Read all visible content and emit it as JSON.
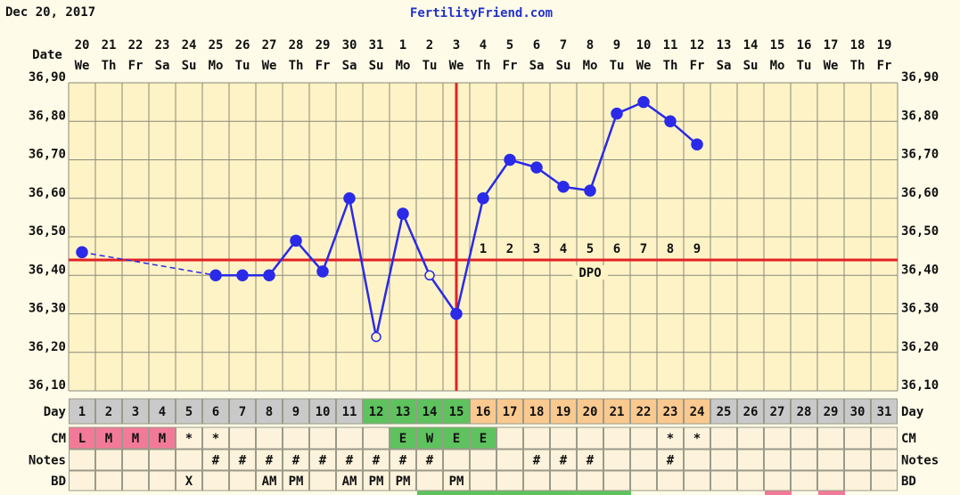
{
  "chart_data": {
    "type": "line",
    "date": "Dec 20, 2017",
    "title": "FertilityFriend.com",
    "x_header": "Date",
    "categories": [
      "20",
      "21",
      "22",
      "23",
      "24",
      "25",
      "26",
      "27",
      "28",
      "29",
      "30",
      "31",
      "1",
      "2",
      "3",
      "4",
      "5",
      "6",
      "7",
      "8",
      "9",
      "10",
      "11",
      "12",
      "13",
      "14",
      "15",
      "16",
      "17",
      "18",
      "19"
    ],
    "weekdays": [
      "We",
      "Th",
      "Fr",
      "Sa",
      "Su",
      "Mo",
      "Tu",
      "We",
      "Th",
      "Fr",
      "Sa",
      "Su",
      "Mo",
      "Tu",
      "We",
      "Th",
      "Fr",
      "Sa",
      "Su",
      "Mo",
      "Tu",
      "We",
      "Th",
      "Fr",
      "Sa",
      "Su",
      "Mo",
      "Tu",
      "We",
      "Th",
      "Fr"
    ],
    "values": [
      36.46,
      null,
      null,
      null,
      null,
      36.4,
      36.4,
      36.4,
      36.49,
      36.41,
      36.6,
      36.24,
      36.56,
      36.4,
      36.3,
      36.6,
      36.7,
      36.68,
      36.63,
      36.62,
      36.82,
      36.85,
      36.8,
      36.74,
      null,
      null,
      null,
      null,
      null,
      null,
      null
    ],
    "hollow": [
      false,
      false,
      false,
      false,
      false,
      false,
      false,
      false,
      false,
      false,
      false,
      true,
      false,
      true,
      false,
      false,
      false,
      false,
      false,
      false,
      false,
      false,
      false,
      false,
      false,
      false,
      false,
      false,
      false,
      false,
      false
    ],
    "color": "#2a2ae8",
    "ylim": [
      36.1,
      36.9
    ],
    "yticks": [
      {
        "value": 36.1,
        "label": "36,10"
      },
      {
        "value": 36.2,
        "label": "36,20"
      },
      {
        "value": 36.3,
        "label": "36,30"
      },
      {
        "value": 36.4,
        "label": "36,40"
      },
      {
        "value": 36.5,
        "label": "36,50"
      },
      {
        "value": 36.6,
        "label": "36,60"
      },
      {
        "value": 36.7,
        "label": "36,70"
      },
      {
        "value": 36.8,
        "label": "36,80"
      },
      {
        "value": 36.9,
        "label": "36,90"
      }
    ],
    "grid": true,
    "coverline": 36.44,
    "marker_line_color": "#e32222",
    "ovulation_day": 15,
    "dpo": [
      null,
      null,
      null,
      null,
      null,
      null,
      null,
      null,
      null,
      null,
      null,
      null,
      null,
      null,
      null,
      1,
      2,
      3,
      4,
      5,
      6,
      7,
      8,
      9,
      null,
      null,
      null,
      null,
      null,
      null,
      null
    ],
    "dpo_label": "DPO",
    "rows": [
      {
        "label": "Day",
        "values": [
          1,
          2,
          3,
          4,
          5,
          6,
          7,
          8,
          9,
          10,
          11,
          12,
          13,
          14,
          15,
          16,
          17,
          18,
          19,
          20,
          21,
          22,
          23,
          24,
          25,
          26,
          27,
          28,
          29,
          30,
          31
        ],
        "fills": [
          "#c9c9c9",
          "#c9c9c9",
          "#c9c9c9",
          "#c9c9c9",
          "#c9c9c9",
          "#c9c9c9",
          "#c9c9c9",
          "#c9c9c9",
          "#c9c9c9",
          "#c9c9c9",
          "#c9c9c9",
          "#5ec25e",
          "#5ec25e",
          "#5ec25e",
          "#5ec25e",
          "#f9c98f",
          "#f9c98f",
          "#f9c98f",
          "#f9c98f",
          "#f9c98f",
          "#f9c98f",
          "#f9c98f",
          "#f9c98f",
          "#f9c98f",
          "#c9c9c9",
          "#c9c9c9",
          "#c9c9c9",
          "#c9c9c9",
          "#c9c9c9",
          "#c9c9c9",
          "#c9c9c9"
        ]
      },
      {
        "label": "CM",
        "values": [
          "L",
          "M",
          "M",
          "M",
          "*",
          "*",
          null,
          null,
          null,
          null,
          null,
          null,
          "E",
          "W",
          "E",
          "E",
          null,
          null,
          null,
          null,
          null,
          null,
          "*",
          "*",
          null,
          null,
          null,
          null,
          null,
          null,
          null
        ],
        "fills": [
          "#f27a98",
          "#f27a98",
          "#f27a98",
          "#f27a98",
          null,
          null,
          null,
          null,
          null,
          null,
          null,
          null,
          "#5ec25e",
          "#5ec25e",
          "#5ec25e",
          "#5ec25e",
          null,
          null,
          null,
          null,
          null,
          null,
          null,
          null,
          null,
          null,
          null,
          null,
          null,
          null,
          null
        ]
      },
      {
        "label": "Notes",
        "values": [
          null,
          null,
          null,
          null,
          null,
          "#",
          "#",
          "#",
          "#",
          "#",
          "#",
          "#",
          "#",
          "#",
          null,
          null,
          null,
          "#",
          "#",
          "#",
          null,
          null,
          "#",
          null,
          null,
          null,
          null,
          null,
          null,
          null,
          null
        ]
      },
      {
        "label": "BD",
        "values": [
          null,
          null,
          null,
          null,
          "X",
          null,
          null,
          "AM",
          "PM",
          null,
          "AM",
          "PM",
          "PM",
          null,
          "PM",
          null,
          null,
          null,
          null,
          null,
          null,
          null,
          null,
          null,
          null,
          null,
          null,
          null,
          null,
          null,
          null
        ]
      }
    ]
  }
}
